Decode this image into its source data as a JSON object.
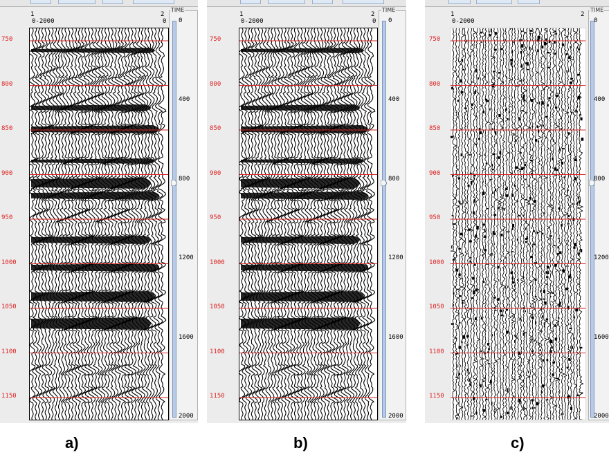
{
  "panels": [
    {
      "caption": "a)",
      "trace_start": "1",
      "trace_end": "2",
      "range": "0-2000",
      "end_zero": "0",
      "slider_title": "TIME",
      "slider_ticks": [
        "0",
        "400",
        "800",
        "1200",
        "1600",
        "2000"
      ],
      "slider_position": 0.41,
      "time_labels": [
        "750",
        "800",
        "850",
        "900",
        "950",
        "1000",
        "1050",
        "1100",
        "1150"
      ],
      "style": "strong"
    },
    {
      "caption": "b)",
      "trace_start": "1",
      "trace_end": "2",
      "range": "0-2000",
      "end_zero": "0",
      "slider_title": "TIME",
      "slider_ticks": [
        "0",
        "400",
        "800",
        "1200",
        "1600",
        "2000"
      ],
      "slider_position": 0.41,
      "time_labels": [
        "750",
        "800",
        "850",
        "900",
        "950",
        "1000",
        "1050",
        "1100",
        "1150"
      ],
      "style": "strong"
    },
    {
      "caption": "c)",
      "trace_start": "1",
      "trace_end": "2",
      "range": "0-2000",
      "end_zero": "",
      "slider_title": "TIME",
      "slider_ticks": [
        "0",
        "400",
        "800",
        "1200",
        "1600",
        "2000"
      ],
      "slider_position": 0.41,
      "time_labels": [
        "750",
        "800",
        "850",
        "900",
        "950",
        "1000",
        "1050",
        "1100",
        "1150"
      ],
      "style": "noise"
    }
  ],
  "colors": {
    "time_line": "#dd2222",
    "trace": "#000000",
    "slider_track": "#b8cbe6"
  }
}
